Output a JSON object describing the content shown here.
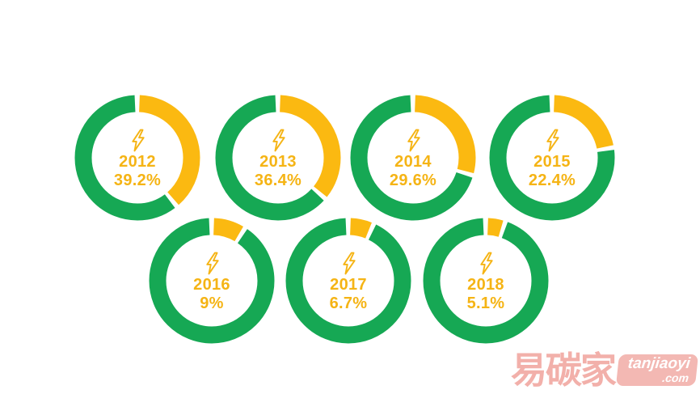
{
  "page": {
    "background": "#ffffff"
  },
  "chart_data": {
    "type": "pie",
    "subtype": "donut_multiples",
    "title": "",
    "description": "Seven donut charts, one per year; yellow slice is the highlighted percentage starting at 12 o'clock clockwise, green is the remainder; lightning bolt icon in each center",
    "categories": [
      "2012",
      "2013",
      "2014",
      "2015",
      "2016",
      "2017",
      "2018"
    ],
    "values": [
      39.2,
      36.4,
      29.6,
      22.4,
      9,
      6.7,
      5.1
    ],
    "value_labels": [
      "39.2%",
      "36.4%",
      "29.6%",
      "22.4%",
      "9%",
      "6.7%",
      "5.1%"
    ],
    "colors": {
      "highlight": "#FBB911",
      "remainder": "#16A854",
      "label_text": "#F5B415"
    },
    "icon": "lightning-bolt",
    "legend": "none",
    "start_angle": "12 o'clock, clockwise",
    "grid": "off"
  },
  "watermark": {
    "brand": "易碳家",
    "site_line1": "tanjiaoyi",
    "site_line2": ".com",
    "brand_color": "#EF9A93",
    "badge_color": "#F0A59E"
  }
}
